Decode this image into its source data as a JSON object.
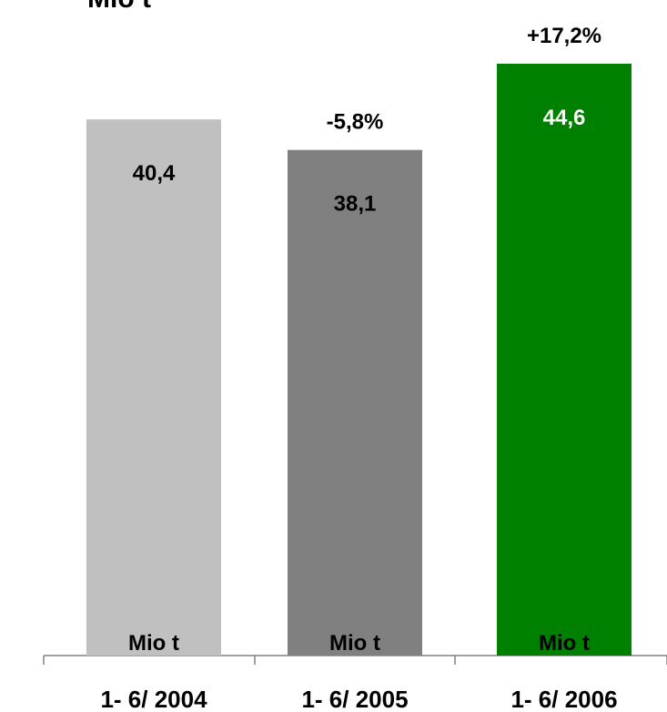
{
  "chart_data": {
    "type": "bar",
    "title": "Mio t",
    "categories": [
      "1- 6/ 2004",
      "1- 6/ 2005",
      "1- 6/ 2006"
    ],
    "values": [
      40.4,
      38.1,
      44.6
    ],
    "value_labels": [
      "40,4",
      "38,1",
      "44,6"
    ],
    "unit_labels": [
      "Mio t",
      "Mio t",
      "Mio t"
    ],
    "change_labels": [
      "",
      "-5,8%",
      "+17,2%"
    ],
    "colors": [
      "#c0c0c0",
      "#808080",
      "#008000"
    ],
    "value_label_colors": [
      "#000000",
      "#000000",
      "#ffffff"
    ],
    "ylim": [
      0,
      49.4
    ],
    "grid": false
  }
}
